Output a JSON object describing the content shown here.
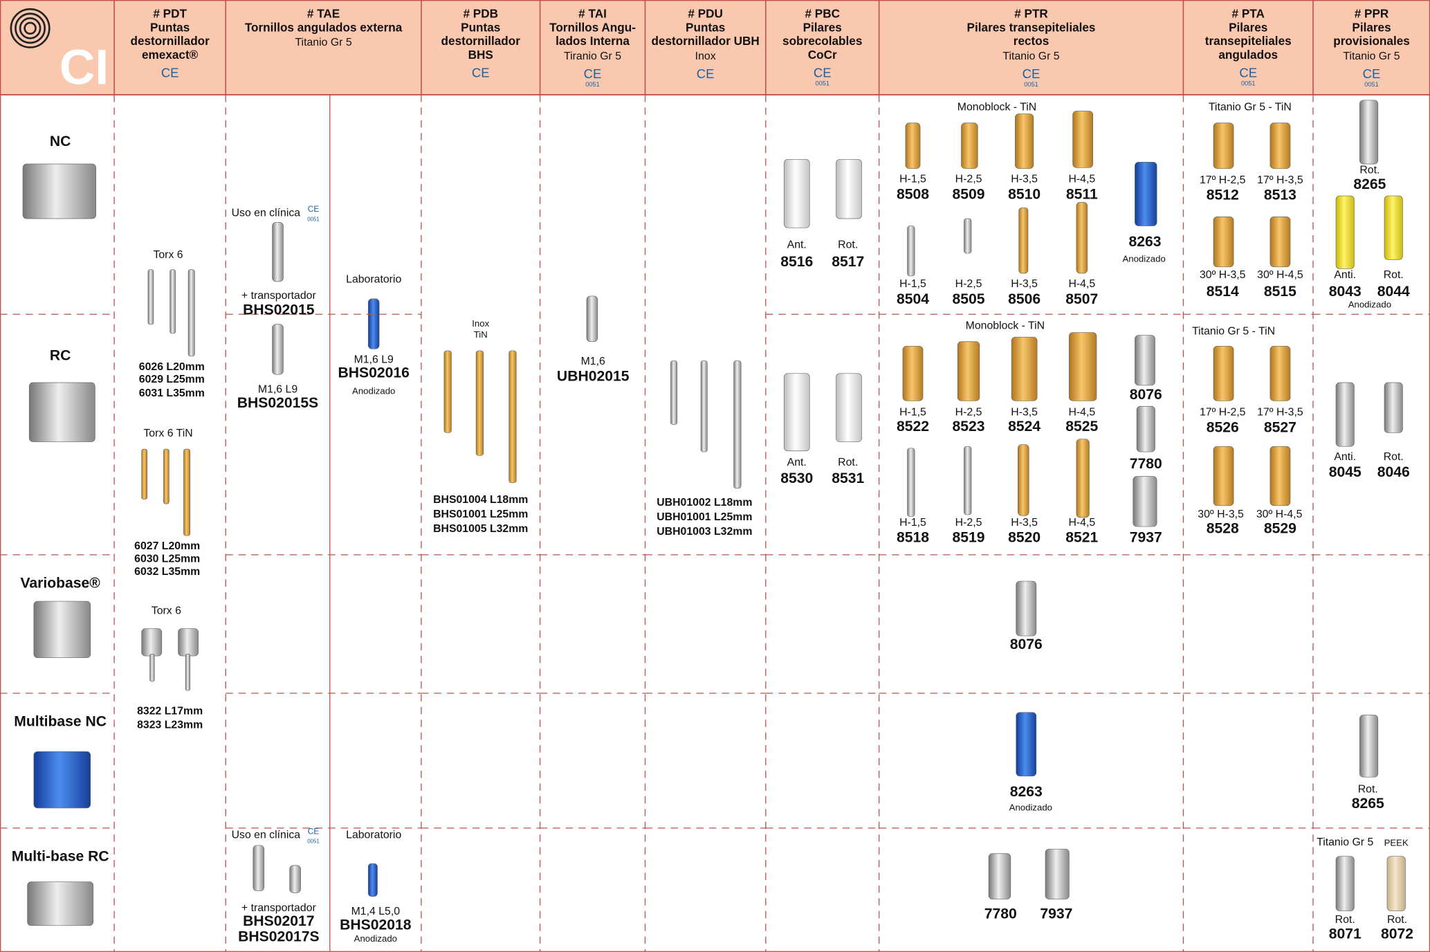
{
  "header": {
    "logo": "CI",
    "columns": [
      {
        "code": "# PDT",
        "lines": [
          "Puntas",
          "destornillador",
          "emexact®"
        ],
        "ce": "CE"
      },
      {
        "code": "# TAE",
        "lines": [
          "Tornillos angulados externa"
        ],
        "note": "Titanio Gr 5"
      },
      {
        "code": "# PDB",
        "lines": [
          "Puntas",
          "destornillador",
          "BHS"
        ],
        "ce": "CE"
      },
      {
        "code": "# TAI",
        "lines": [
          "Tornillos Angu-",
          "lados Interna"
        ],
        "note": "Tiranio Gr 5",
        "ce": "CE",
        "ce_number": "0051"
      },
      {
        "code": "# PDU",
        "lines": [
          "Puntas",
          "destornillador UBH"
        ],
        "note": "Inox",
        "ce": "CE"
      },
      {
        "code": "# PBC",
        "lines": [
          "Pilares",
          "sobrecolables",
          "CoCr"
        ],
        "ce": "CE",
        "ce_number": "0051"
      },
      {
        "code": "# PTR",
        "lines": [
          "Pilares transepiteliales",
          "rectos"
        ],
        "note": "Titanio Gr 5",
        "ce": "CE",
        "ce_number": "0051"
      },
      {
        "code": "# PTA",
        "lines": [
          "Pilares",
          "transepiteliales",
          "angulados"
        ],
        "ce": "CE",
        "ce_number": "0051"
      },
      {
        "code": "# PPR",
        "lines": [
          "Pilares",
          "provisionales"
        ],
        "note": "Titanio Gr 5",
        "ce": "CE",
        "ce_number": "0051"
      }
    ]
  },
  "rows": [
    "NC",
    "RC",
    "Variobase®",
    "Multibase NC",
    "Multi-base RC"
  ],
  "labels": [
    "Torx 6",
    "6026 L20mm",
    "6029 L25mm",
    "6031 L35mm",
    "Torx 6 TiN",
    "6027 L20mm",
    "6030 L25mm",
    "6032 L35mm",
    "Torx 6",
    "8322 L17mm",
    "8323 L23mm",
    "Uso en clínica",
    "CE",
    "0051",
    "+ transportador",
    "BHS02015",
    "M1,6 L9",
    "BHS02015S",
    "Laboratorio",
    "M1,6 L9",
    "BHS02016",
    "Anodizado",
    "Uso en clínica",
    "CE",
    "0051",
    "+ transportador",
    "BHS02017",
    "BHS02017S",
    "Laboratorio",
    "M1,4 L5,0",
    "BHS02018",
    "Anodizado",
    "Inox",
    "TiN",
    "BHS01004 L18mm",
    "BHS01001 L25mm",
    "BHS01005 L32mm",
    "M1,6",
    "UBH02015",
    "UBH01002 L18mm",
    "UBH01001 L25mm",
    "UBH01003 L32mm",
    "Ant.",
    "Rot.",
    "8516",
    "8517",
    "Ant.",
    "Rot.",
    "8530",
    "8531",
    "Monoblock - TiN",
    "H-1,5",
    "H-2,5",
    "H-3,5",
    "H-4,5",
    "8508",
    "8509",
    "8510",
    "8511",
    "8263",
    "Anodizado",
    "H-1,5",
    "H-2,5",
    "H-3,5",
    "H-4,5",
    "8504",
    "8505",
    "8506",
    "8507",
    "Monoblock - TiN",
    "H-1,5",
    "H-2,5",
    "H-3,5",
    "H-4,5",
    "8522",
    "8523",
    "8524",
    "8525",
    "8076",
    "7780",
    "7937",
    "H-1,5",
    "H-2,5",
    "H-3,5",
    "H-4,5",
    "8518",
    "8519",
    "8520",
    "8521",
    "8076",
    "8263",
    "Anodizado",
    "7780",
    "7937",
    "Titanio Gr 5 - TiN",
    "17º H-2,5",
    "17º H-3,5",
    "8512",
    "8513",
    "30º H-3,5",
    "30º H-4,5",
    "8514",
    "8515",
    "Titanio Gr 5 - TiN",
    "17º H-2,5",
    "17º H-3,5",
    "8526",
    "8527",
    "30º H-3,5",
    "30º H-4,5",
    "8528",
    "8529",
    "Rot.",
    "8265",
    "Anti.",
    "Rot.",
    "8043",
    "8044",
    "Anodizado",
    "Anti.",
    "Rot.",
    "8045",
    "8046",
    "Rot.",
    "8265",
    "Titanio Gr 5",
    "PEEK",
    "Rot.",
    "Rot.",
    "8071",
    "8072"
  ]
}
